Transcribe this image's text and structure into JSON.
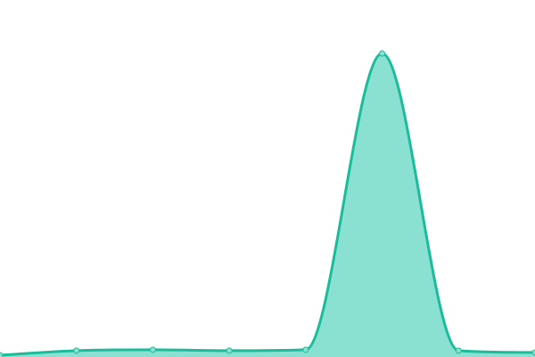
{
  "chart_data": {
    "type": "area",
    "x": [
      0,
      1,
      2,
      3,
      4,
      5,
      6,
      7
    ],
    "values": [
      0.6,
      2.1,
      2.4,
      2.1,
      2.4,
      100,
      2.1,
      1.5
    ],
    "ylim": [
      0,
      117.6
    ],
    "grid": false,
    "axes_visible": false,
    "legend": "none",
    "interpolation": "monotone",
    "colors": {
      "line": "#1abc9c",
      "fill": "#8ae1d1",
      "point_fill": "#8ae1d1"
    }
  }
}
